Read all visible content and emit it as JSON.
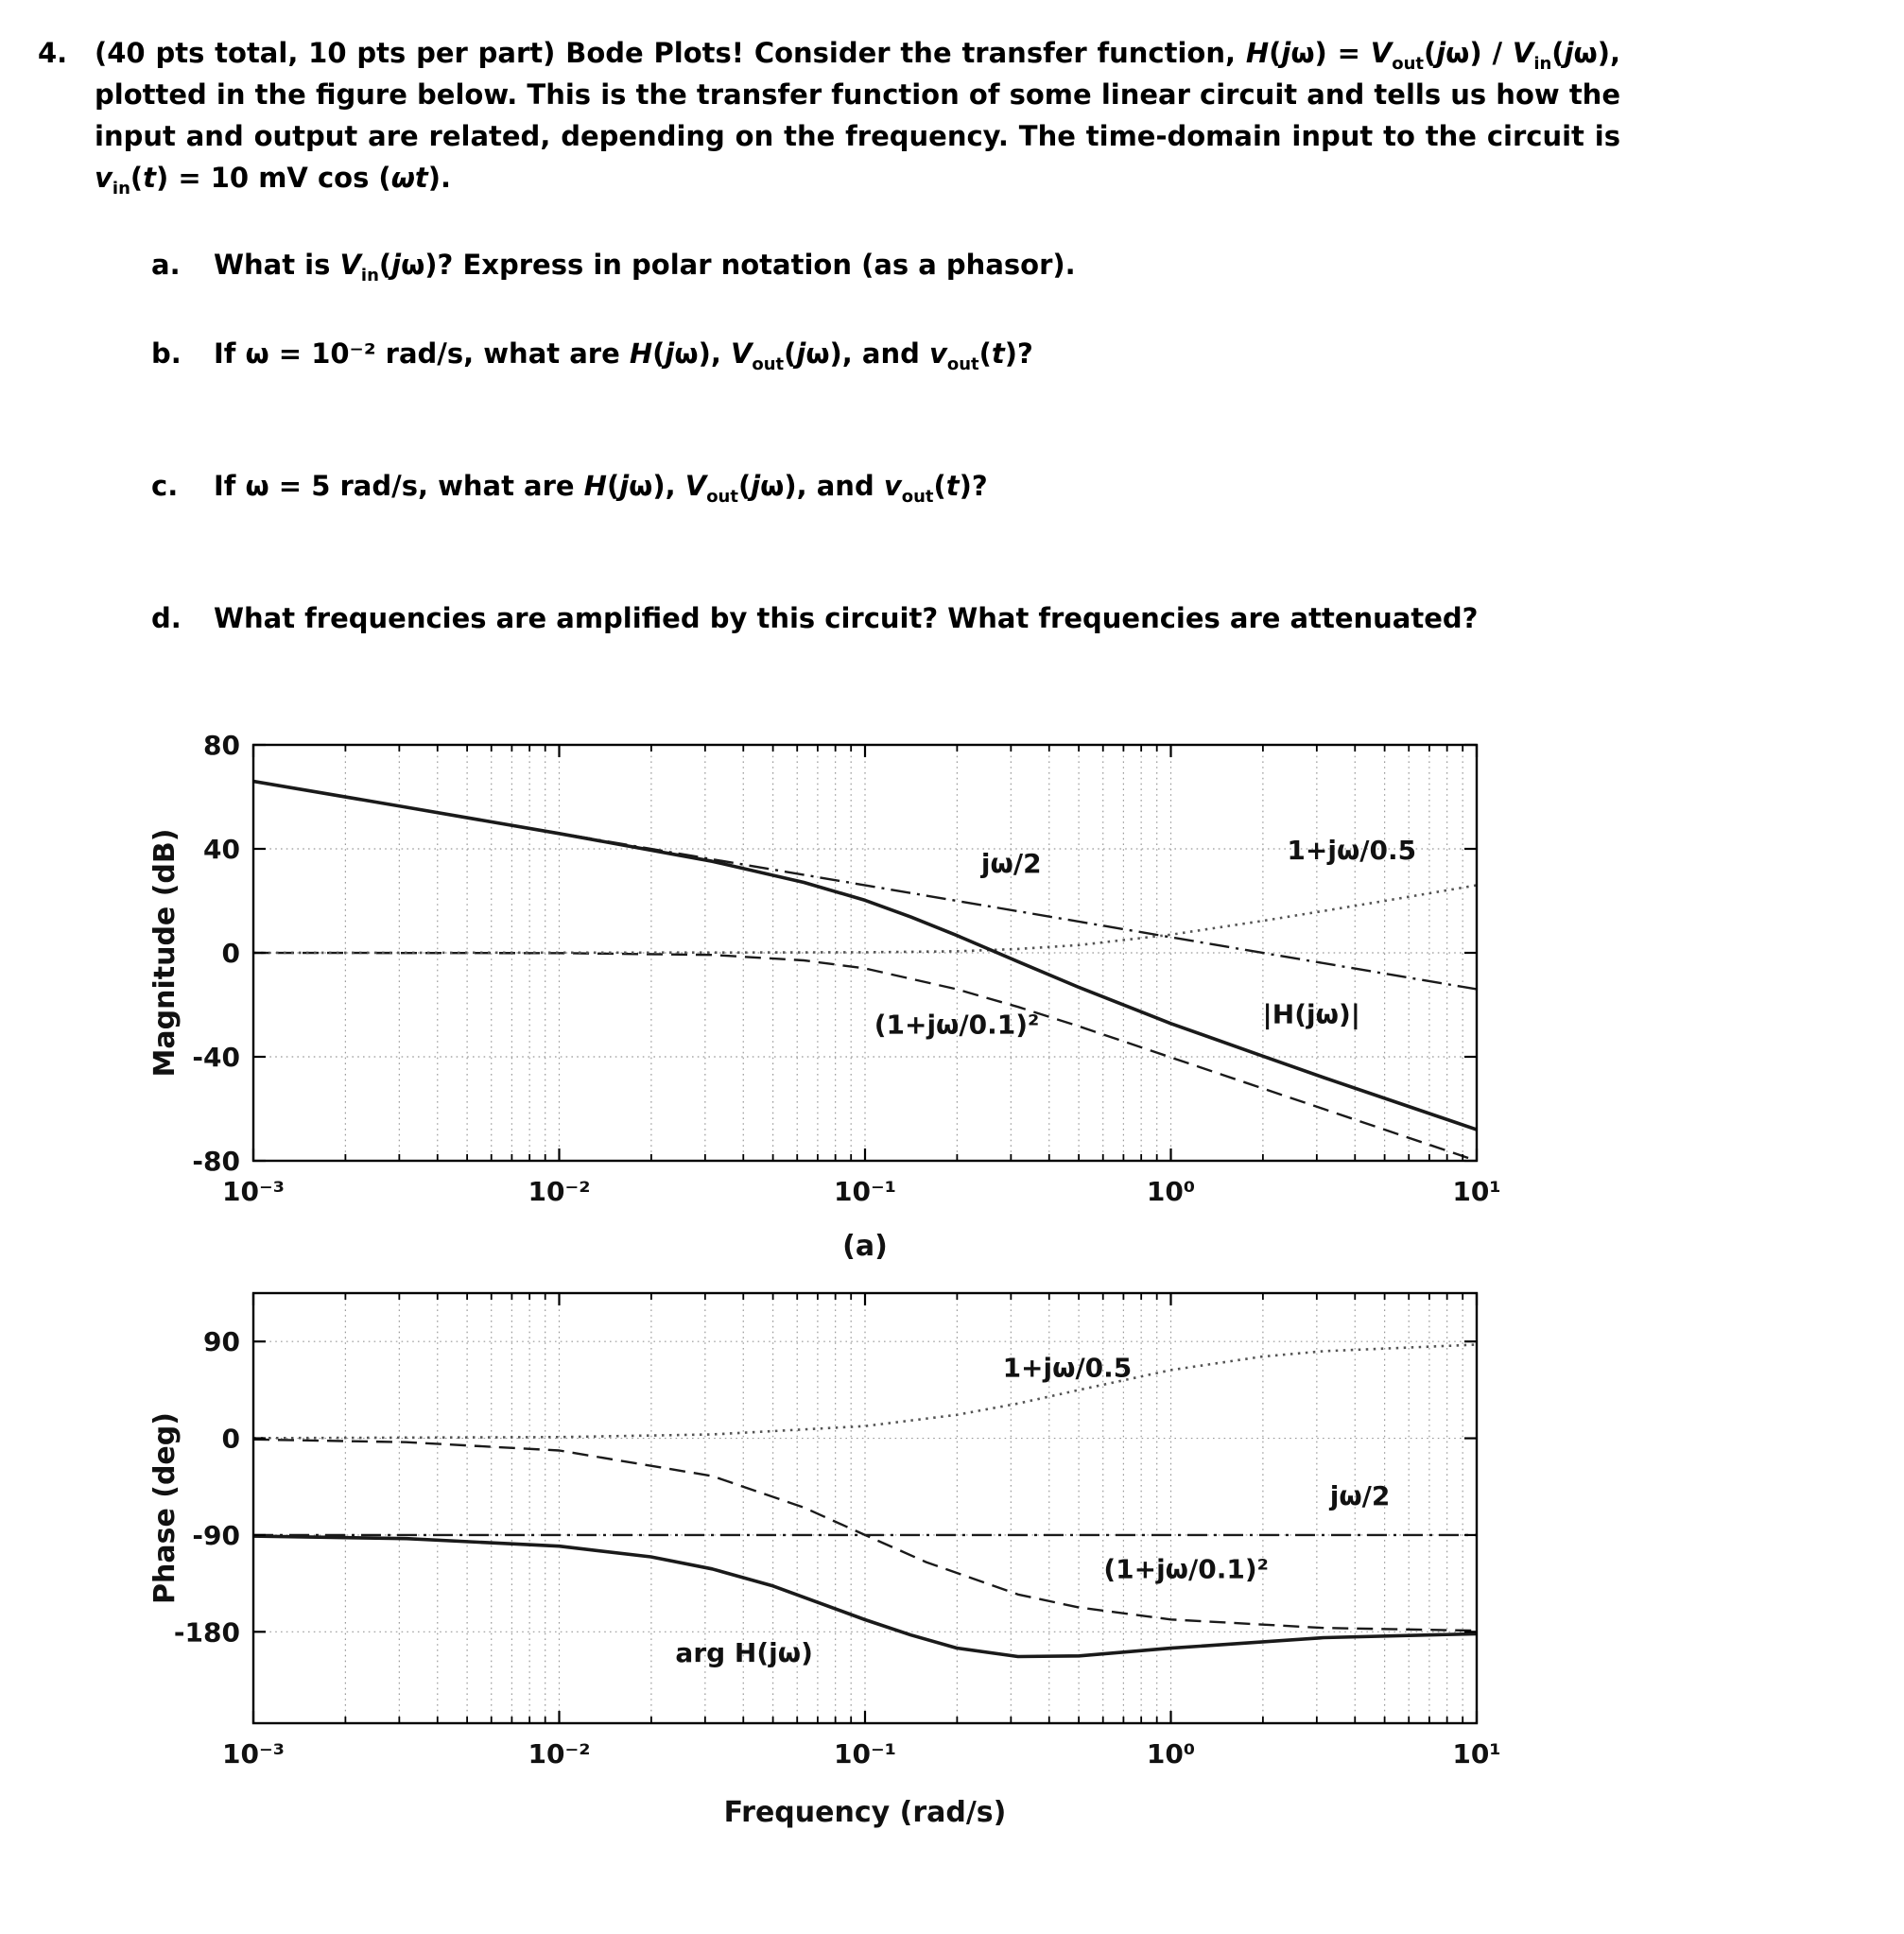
{
  "page": {
    "background": "#ffffff",
    "text_color": "#000000",
    "accent_color": "#1a1a1a"
  },
  "problem": {
    "number": "4.",
    "intro": "(40 pts total, 10 pts per part) <b>Bode Plots!</b> Consider the transfer function, <i>H</i>(<i>j</i>ω) = <i>V</i><sub>out</sub>(<i>j</i>ω) / <i>V</i><sub>in</sub>(<i>j</i>ω), plotted in the figure below. This is the transfer function of some linear circuit and tells us how the input and output are related, depending on the frequency. The time-domain input to the circuit is <i>v</i><sub>in</sub>(<i>t</i>) = 10 mV cos (<i>ωt</i>).",
    "parts": [
      {
        "label": "a.",
        "text": "What is <i>V</i><sub>in</sub>(<i>j</i>ω)? Express in polar notation (as a phasor)."
      },
      {
        "label": "b.",
        "text": "If ω = 10⁻² rad/s, what are <i>H</i>(<i>j</i>ω), <i>V</i><sub>out</sub>(<i>j</i>ω), and <i>v</i><sub>out</sub>(<i>t</i>)?"
      },
      {
        "label": "c.",
        "text": "If ω = 5 rad/s, what are <i>H</i>(<i>j</i>ω), <i>V</i><sub>out</sub>(<i>j</i>ω), and <i>v</i><sub>out</sub>(<i>t</i>)?"
      },
      {
        "label": "d.",
        "text": "What frequencies are amplified by this circuit? What frequencies are attenuated?"
      }
    ]
  },
  "chart_data": [
    {
      "type": "line",
      "title": "Bode magnitude plot",
      "ylabel": "Magnitude (dB)",
      "caption": "(a)",
      "x_scale": "log10 of frequency (rad/s)",
      "xlim": [
        -3,
        1
      ],
      "ylim": [
        -80,
        80
      ],
      "xticks": [
        -3,
        -2,
        -1,
        0,
        1
      ],
      "xtick_labels": [
        "10⁻³",
        "10⁻²",
        "10⁻¹",
        "10⁰",
        "10¹"
      ],
      "yticks": [
        80,
        40,
        0,
        -40,
        -80
      ],
      "ytick_labels": [
        "80",
        "40",
        "0",
        "-40",
        "-80"
      ],
      "grid": true,
      "series": [
        {
          "id": "jw-over-2",
          "name": "jω/2",
          "style": "dashdot",
          "width": 2.4,
          "points": [
            [
              -3,
              66
            ],
            [
              1,
              -14
            ]
          ]
        },
        {
          "id": "one-plus-jw-over-0p1-squared",
          "name": "(1+jω/0.1)²",
          "style": "dashed",
          "width": 2.4,
          "points": [
            [
              -3,
              0
            ],
            [
              -2,
              -0.1
            ],
            [
              -1.5,
              -0.8
            ],
            [
              -1.2,
              -2.9
            ],
            [
              -1,
              -6
            ],
            [
              -0.7,
              -14
            ],
            [
              -0.5,
              -20.8
            ],
            [
              -0.3,
              -28.3
            ],
            [
              0,
              -40.2
            ],
            [
              0.5,
              -60.1
            ],
            [
              1,
              -80
            ]
          ]
        },
        {
          "id": "one-plus-jw-over-0p5",
          "name": "1+jω/0.5",
          "style": "dotted",
          "width": 2.6,
          "color": "#555555",
          "points": [
            [
              -3,
              0
            ],
            [
              -1.5,
              0.1
            ],
            [
              -1,
              0.2
            ],
            [
              -0.7,
              0.6
            ],
            [
              -0.5,
              1.5
            ],
            [
              -0.3,
              3
            ],
            [
              0,
              7
            ],
            [
              0.3,
              12.3
            ],
            [
              0.5,
              16.1
            ],
            [
              0.7,
              20
            ],
            [
              1,
              26
            ]
          ]
        },
        {
          "id": "H-magnitude",
          "name": "|H(jω)|",
          "style": "solid",
          "width": 3.6,
          "points": [
            [
              -3,
              66
            ],
            [
              -2.5,
              56
            ],
            [
              -2,
              45.9
            ],
            [
              -1.5,
              35.2
            ],
            [
              -1.2,
              27.1
            ],
            [
              -1,
              20.2
            ],
            [
              -0.85,
              13.8
            ],
            [
              -0.7,
              6.7
            ],
            [
              -0.5,
              -3.4
            ],
            [
              -0.3,
              -13.3
            ],
            [
              -0.1,
              -22.6
            ],
            [
              0,
              -27.2
            ],
            [
              0.3,
              -39.7
            ],
            [
              0.5,
              -48
            ],
            [
              0.7,
              -56
            ],
            [
              1,
              -68
            ]
          ]
        }
      ],
      "annotations": [
        {
          "text": "jω/2",
          "x": -0.62,
          "y": 31
        },
        {
          "text": "1+jω/0.5",
          "x": 0.38,
          "y": 36
        },
        {
          "text": "(1+jω/0.1)²",
          "x": -0.97,
          "y": -31
        },
        {
          "text": "|H(jω)|",
          "x": 0.3,
          "y": -27
        }
      ]
    },
    {
      "type": "line",
      "title": "Bode phase plot",
      "ylabel": "Phase (deg)",
      "xlabel": "Frequency (rad/s)",
      "x_scale": "log10 of frequency (rad/s)",
      "xlim": [
        -3,
        1
      ],
      "ylim": [
        -265,
        135
      ],
      "xticks": [
        -3,
        -2,
        -1,
        0,
        1
      ],
      "xtick_labels": [
        "10⁻³",
        "10⁻²",
        "10⁻¹",
        "10⁰",
        "10¹"
      ],
      "yticks": [
        90,
        0,
        -90,
        -180
      ],
      "ytick_labels": [
        "90",
        "0",
        "-90",
        "-180"
      ],
      "grid": true,
      "series": [
        {
          "id": "jw-over-2",
          "name": "jω/2",
          "style": "dashdot",
          "width": 2.4,
          "points": [
            [
              -3,
              -90
            ],
            [
              1,
              -90
            ]
          ]
        },
        {
          "id": "one-plus-jw-over-0p1-squared",
          "name": "(1+jω/0.1)²",
          "style": "dashed",
          "width": 2.4,
          "points": [
            [
              -3,
              -1.1
            ],
            [
              -2.5,
              -3.6
            ],
            [
              -2,
              -11.4
            ],
            [
              -1.5,
              -35.1
            ],
            [
              -1.2,
              -64.4
            ],
            [
              -1,
              -90
            ],
            [
              -0.8,
              -115.2
            ],
            [
              -0.5,
              -145.3
            ],
            [
              -0.3,
              -157.4
            ],
            [
              0,
              -168.6
            ],
            [
              0.5,
              -176.4
            ],
            [
              1,
              -178.9
            ]
          ]
        },
        {
          "id": "one-plus-jw-over-0p5",
          "name": "1+jω/0.5",
          "style": "dotted",
          "width": 2.6,
          "color": "#555555",
          "points": [
            [
              -3,
              0.1
            ],
            [
              -2,
              1.1
            ],
            [
              -1.5,
              3.6
            ],
            [
              -1,
              11.3
            ],
            [
              -0.7,
              21.8
            ],
            [
              -0.5,
              32.3
            ],
            [
              -0.3,
              45
            ],
            [
              0,
              63.4
            ],
            [
              0.3,
              76
            ],
            [
              0.5,
              81
            ],
            [
              1,
              87.1
            ]
          ]
        },
        {
          "id": "arg-H",
          "name": "arg H(jω)",
          "style": "solid",
          "width": 3.6,
          "points": [
            [
              -3,
              -91
            ],
            [
              -2.5,
              -93.3
            ],
            [
              -2,
              -100.3
            ],
            [
              -1.7,
              -110.3
            ],
            [
              -1.5,
              -121.5
            ],
            [
              -1.3,
              -137.4
            ],
            [
              -1,
              -168.7
            ],
            [
              -0.85,
              -183
            ],
            [
              -0.7,
              -195.1
            ],
            [
              -0.5,
              -203
            ],
            [
              -0.3,
              -202.4
            ],
            [
              0,
              -195.2
            ],
            [
              0.5,
              -185.4
            ],
            [
              1,
              -181.8
            ]
          ]
        }
      ],
      "annotations": [
        {
          "text": "1+jω/0.5",
          "x": -0.55,
          "y": 57
        },
        {
          "text": "jω/2",
          "x": 0.52,
          "y": -62
        },
        {
          "text": "(1+jω/0.1)²",
          "x": -0.22,
          "y": -130
        },
        {
          "text": "arg H(jω)",
          "x": -1.62,
          "y": -208
        }
      ]
    }
  ]
}
